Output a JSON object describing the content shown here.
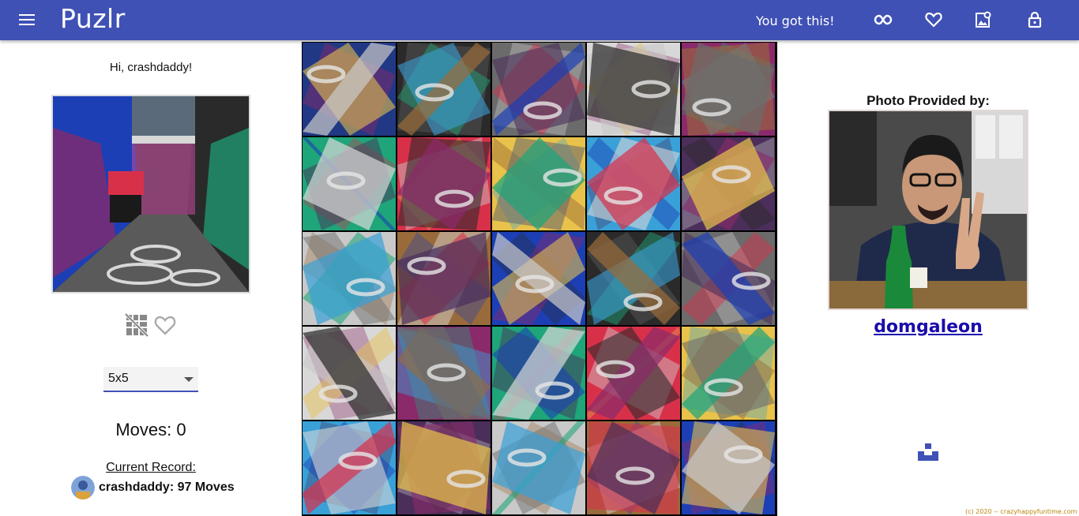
{
  "app": {
    "brand": "Puzlr",
    "motto": "You got this!",
    "icons": [
      "menu-icon",
      "infinity-icon",
      "heart-icon",
      "gallery-icon",
      "lock-icon"
    ]
  },
  "left": {
    "greeting": "Hi, crashdaddy!",
    "grid_size_selected": "5x5",
    "moves_label": "Moves: 0",
    "moves": 0,
    "record_title": "Current Record:",
    "record_text": "crashdaddy: 97 Moves"
  },
  "board": {
    "rows": 5,
    "cols": 5,
    "palette": [
      "#1c3fb5",
      "#2a2a2a",
      "#6b6b6b",
      "#d8d8d8",
      "#8a2a6a",
      "#1ea57a",
      "#d9304a",
      "#e8c24a",
      "#3aa0d8",
      "#4b2e5a",
      "#c9c9c9",
      "#9a6b3a"
    ]
  },
  "right": {
    "credit_title": "Photo Provided by:",
    "credit_name": "domgaleon"
  },
  "footer": {
    "text": "(c) 2020 -- crazyhappyfuntime.com"
  },
  "colors": {
    "primary": "#3f51b5",
    "link": "#1a0dab",
    "footer": "#b8860b"
  }
}
